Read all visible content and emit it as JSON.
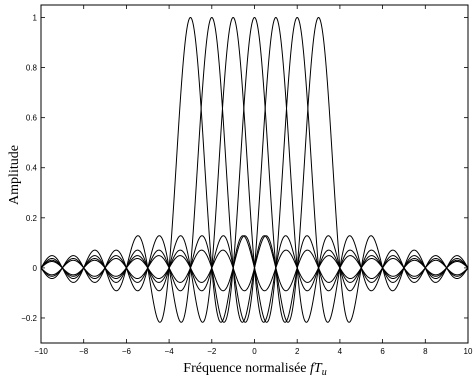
{
  "chart_data": {
    "type": "line",
    "title": "",
    "xlabel": "Fréquence normalisée",
    "xlabel_math": "fT",
    "xlabel_sub": "u",
    "ylabel": "Amplitude",
    "xlim": [
      -10,
      10
    ],
    "ylim": [
      -0.3,
      1.05
    ],
    "xticks": [
      -10,
      -8,
      -6,
      -4,
      -2,
      0,
      2,
      4,
      6,
      8,
      10
    ],
    "xtick_labels": [
      "−10",
      "−8",
      "−6",
      "−4",
      "−2",
      "0",
      "2",
      "4",
      "6",
      "8",
      "10"
    ],
    "yticks": [
      -0.2,
      0,
      0.2,
      0.4,
      0.6,
      0.8,
      1
    ],
    "ytick_labels": [
      "−0.2",
      "0",
      "0.2",
      "0.4",
      "0.6",
      "0.8",
      "1"
    ],
    "grid": false,
    "function": "sinc(f − k)",
    "series": [
      {
        "center": -3,
        "peak": 1
      },
      {
        "center": -2,
        "peak": 1
      },
      {
        "center": -1,
        "peak": 1
      },
      {
        "center": 0,
        "peak": 1
      },
      {
        "center": 1,
        "peak": 1
      },
      {
        "center": 2,
        "peak": 1
      },
      {
        "center": 3,
        "peak": 1
      }
    ],
    "line_color": "#000000"
  }
}
